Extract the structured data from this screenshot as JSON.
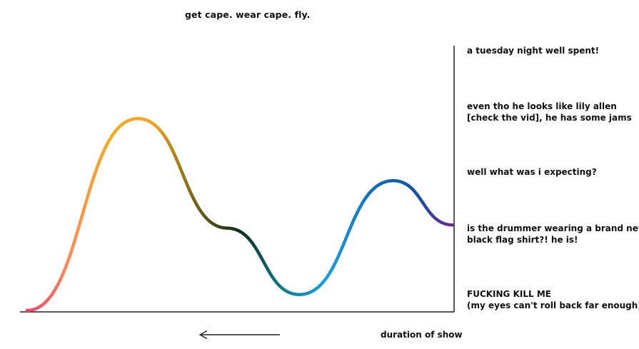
{
  "chart_data": {
    "type": "line",
    "title": "get cape. wear cape. fly.",
    "xlabel": "duration of show",
    "x_direction_arrow": "left",
    "ylim": [
      0,
      4
    ],
    "y_ticks": [
      {
        "value": 0,
        "lines": [
          "FUCKING KILL ME",
          "(my eyes can't roll back far enough)"
        ]
      },
      {
        "value": 1,
        "lines": [
          "is the drummer wearing a brand new",
          "black flag shirt?! he is!"
        ]
      },
      {
        "value": 2,
        "lines": [
          "well what was i expecting?"
        ]
      },
      {
        "value": 3,
        "lines": [
          "even tho he looks like lily allen",
          "[check the vid], he has some jams"
        ]
      },
      {
        "value": 4,
        "lines": [
          "a tuesday night well spent!"
        ]
      }
    ],
    "xlim": [
      0,
      100
    ],
    "series": [
      {
        "points": [
          {
            "x": 0,
            "y": 0.0
          },
          {
            "x": 26,
            "y": 3.03
          },
          {
            "x": 47,
            "y": 1.3
          },
          {
            "x": 64,
            "y": 0.25
          },
          {
            "x": 86,
            "y": 2.05
          },
          {
            "x": 100,
            "y": 1.35
          }
        ],
        "gradient_colors": [
          "#ee3a6e",
          "#fb8c5a",
          "#f6ac1c",
          "#f3a31f",
          "#6f6214",
          "#0e2a1e",
          "#0a7f8a",
          "#1ba0e2",
          "#1172c3",
          "#0e56a8",
          "#6a2a92"
        ]
      }
    ],
    "grid": false,
    "legend": "none",
    "axis_color": "#222222"
  }
}
